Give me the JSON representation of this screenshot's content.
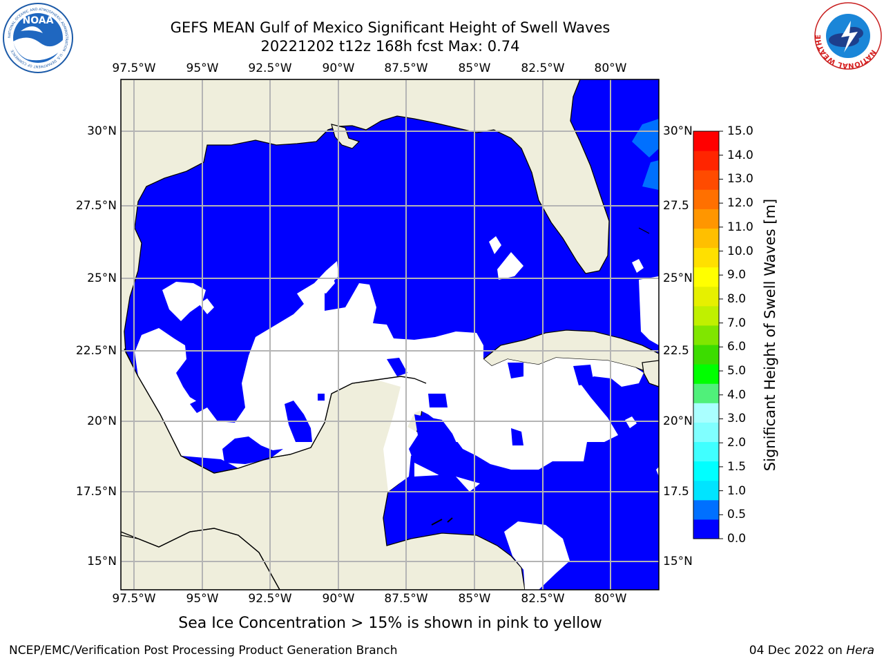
{
  "title": {
    "line1": "GEFS MEAN Gulf of Mexico Significant Height of Swell Waves",
    "line2": "20221202 t12z 168h fcst   Max: 0.74"
  },
  "map": {
    "lon_labels": [
      "97.5°W",
      "95°W",
      "92.5°W",
      "90°W",
      "87.5°W",
      "85°W",
      "82.5°W",
      "80°W"
    ],
    "lat_labels": [
      "30°N",
      "27.5°N",
      "25°N",
      "22.5°N",
      "20°N",
      "17.5°N",
      "15°N"
    ],
    "lat_labels_right": [
      "30°N",
      "27.5",
      "25°N",
      "22.5",
      "20°N",
      "17.5",
      "15°N"
    ],
    "land_color": "#efeedc",
    "grid_color": "#b4b4b4"
  },
  "colorbar": {
    "label": "Significant Height of Swell Waves [m]",
    "ticks": [
      "15.0",
      "14.0",
      "13.0",
      "12.0",
      "11.0",
      "10.0",
      "9.0",
      "8.0",
      "7.0",
      "6.0",
      "5.0",
      "4.0",
      "3.0",
      "2.0",
      "1.5",
      "1.0",
      "0.5",
      "0.0"
    ],
    "colors": [
      "#0000ff",
      "#0070ff",
      "#00e4ff",
      "#00ffff",
      "#40ffff",
      "#80ffff",
      "#aaffff",
      "#50f07a",
      "#00ff00",
      "#3cdc00",
      "#80e600",
      "#c0f000",
      "#e6f000",
      "#ffff00",
      "#ffe000",
      "#ffbf00",
      "#ff9600",
      "#ff7000",
      "#ff4b00",
      "#ff2500",
      "#ff0000"
    ]
  },
  "caption": "Sea Ice Concentration > 15% is shown in pink to yellow",
  "footer": {
    "left": "NCEP/EMC/Verification Post Processing Product Generation Branch",
    "date": "04 Dec 2022",
    "on": " on ",
    "host": "Hera"
  },
  "logos": {
    "noaa": "NOAA",
    "noaa_ring": "NATIONAL OCEANIC AND ATMOSPHERIC ADMINISTRATION · U.S. DEPARTMENT OF COMMERCE",
    "nws_ring": "NATIONAL WEATHER SERVICE"
  }
}
